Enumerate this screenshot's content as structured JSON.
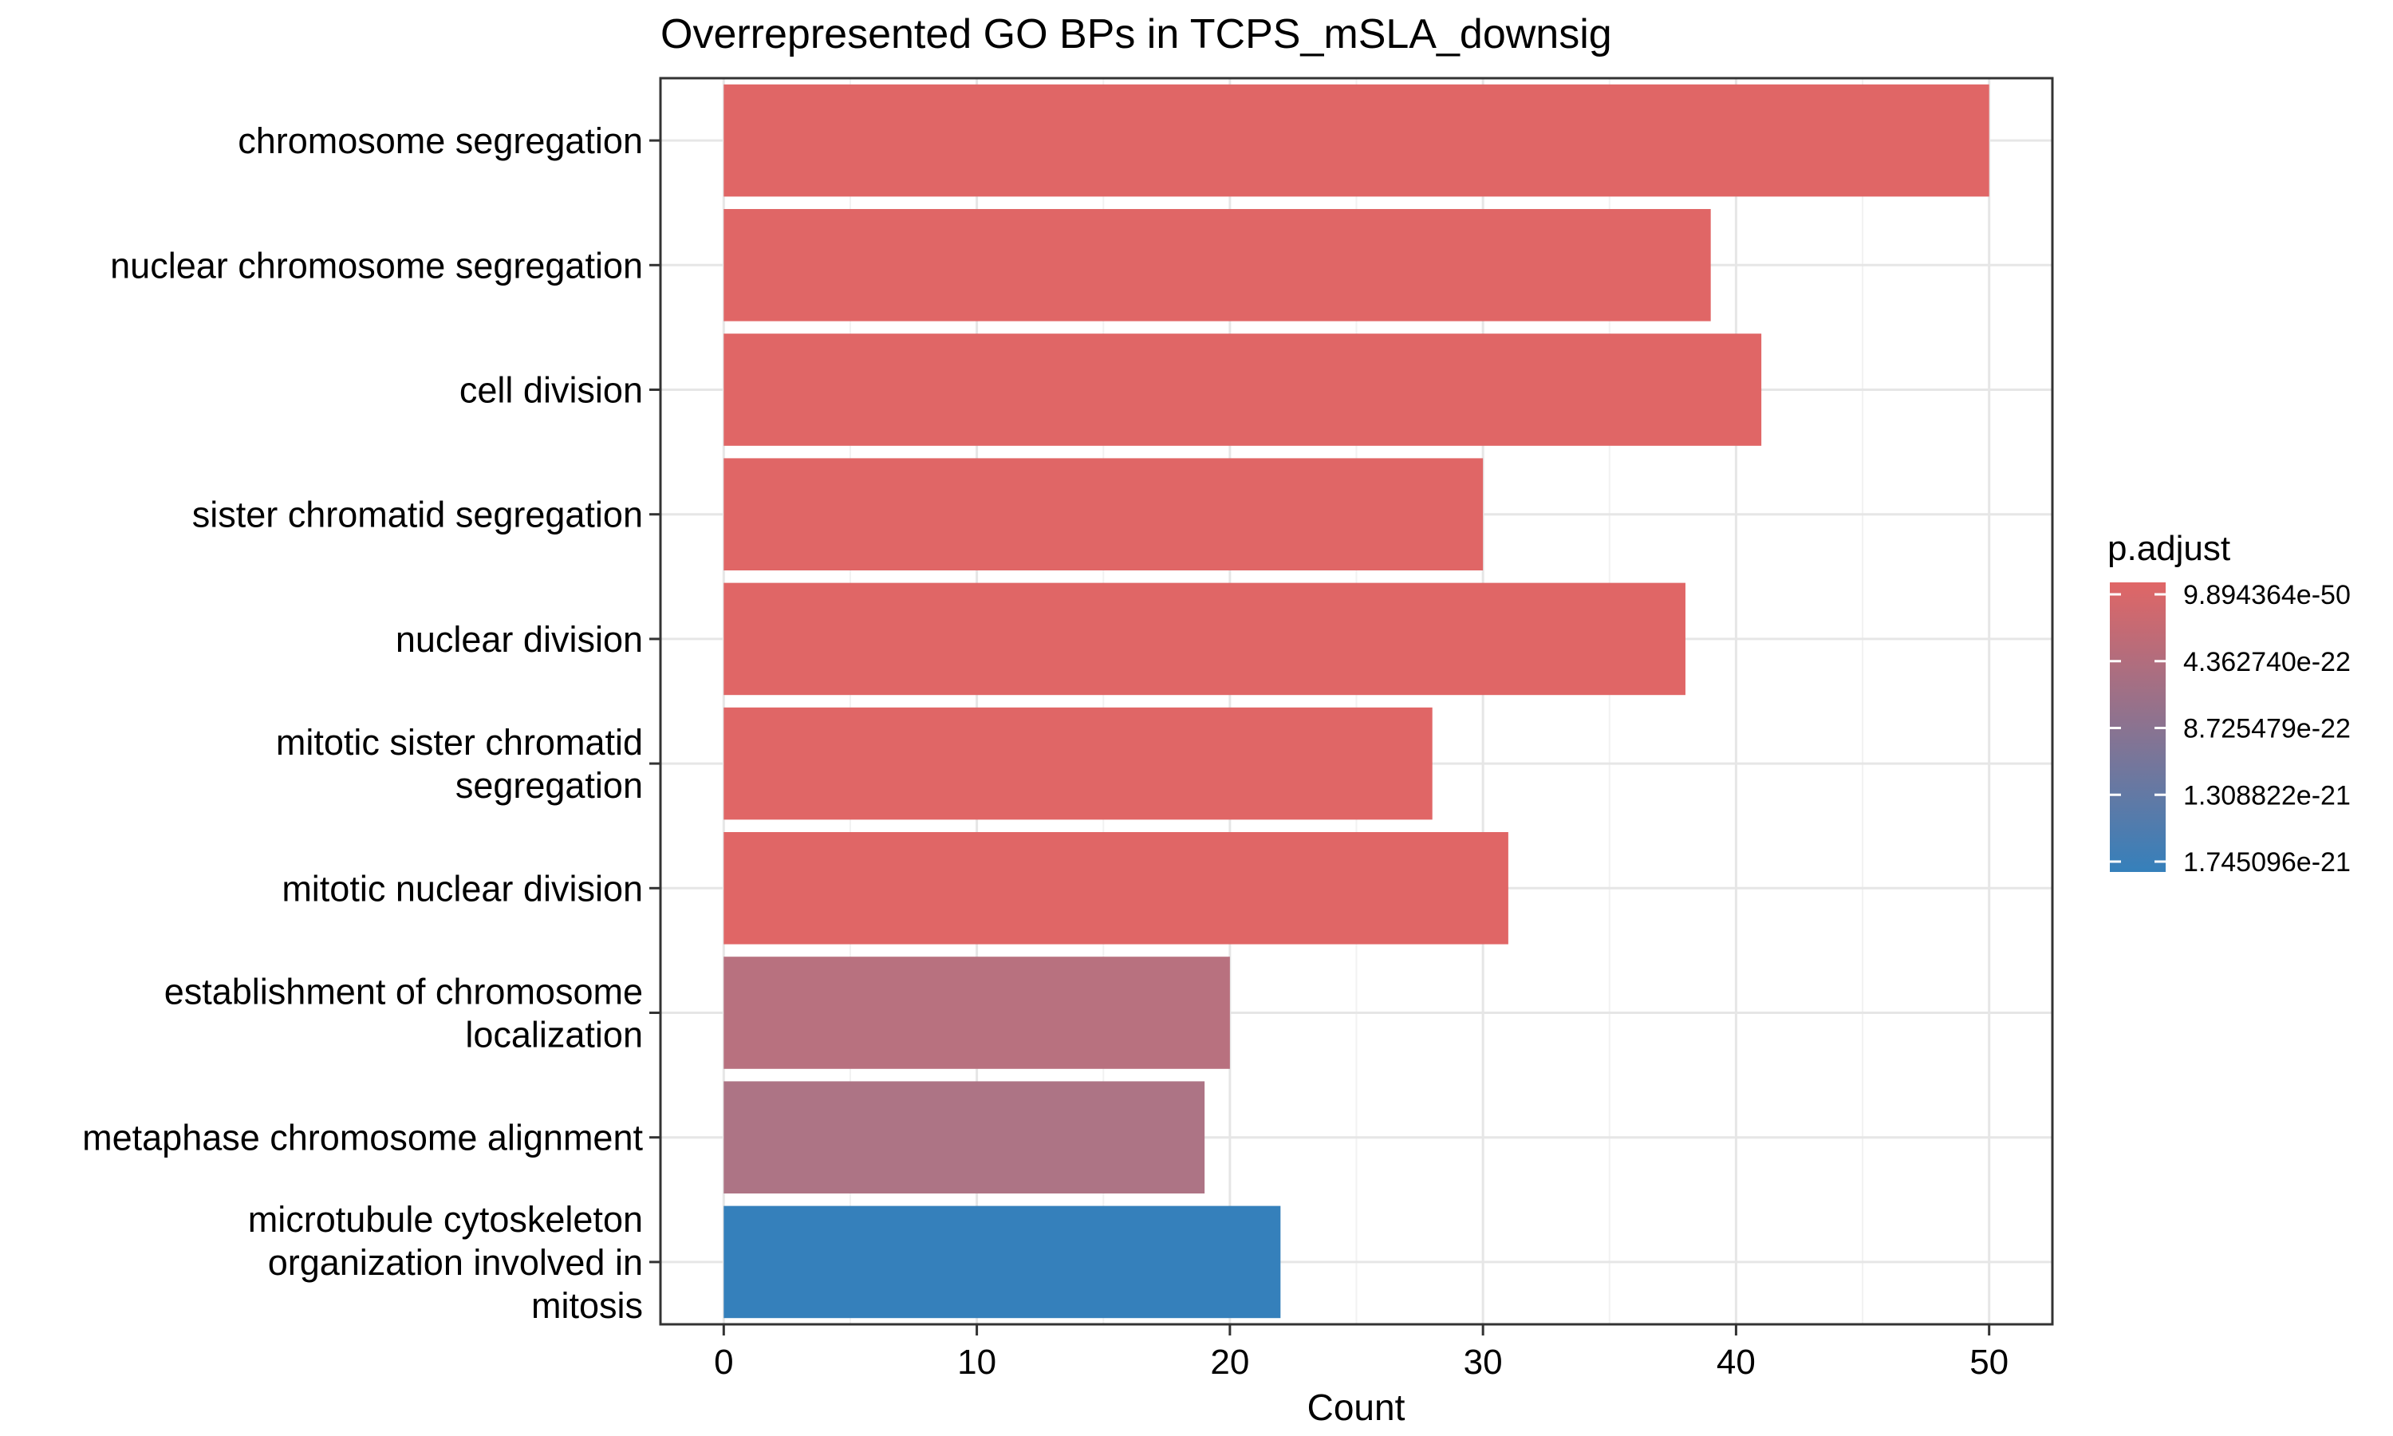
{
  "chart_data": {
    "type": "bar",
    "orientation": "horizontal",
    "title": "Overrepresented GO BPs in TCPS_mSLA_downsig",
    "xlabel": "Count",
    "ylabel": "",
    "xlim": [
      -2.5,
      52.5
    ],
    "x_ticks": [
      0,
      10,
      20,
      30,
      40,
      50
    ],
    "grid": true,
    "categories": [
      [
        "chromosome segregation"
      ],
      [
        "nuclear chromosome segregation"
      ],
      [
        "cell division"
      ],
      [
        "sister chromatid segregation"
      ],
      [
        "nuclear division"
      ],
      [
        "mitotic sister chromatid",
        "segregation"
      ],
      [
        "mitotic nuclear division"
      ],
      [
        "establishment of chromosome",
        "localization"
      ],
      [
        "metaphase chromosome alignment"
      ],
      [
        "microtubule cytoskeleton",
        "organization involved in",
        "mitosis"
      ]
    ],
    "values": [
      50,
      39,
      41,
      30,
      38,
      28,
      31,
      20,
      19,
      22
    ],
    "bar_colors": [
      "#e06666",
      "#e06666",
      "#e06666",
      "#e06666",
      "#e06666",
      "#e06666",
      "#e06666",
      "#b8717f",
      "#ad7485",
      "#3580bb"
    ],
    "legend": {
      "title": "p.adjust",
      "position": "right",
      "type": "colorbar",
      "labels": [
        "9.894364e-50",
        "4.362740e-22",
        "8.725479e-22",
        "1.308822e-21",
        "1.745096e-21"
      ],
      "color_high": "#e06666",
      "color_low": "#3580bb"
    }
  }
}
